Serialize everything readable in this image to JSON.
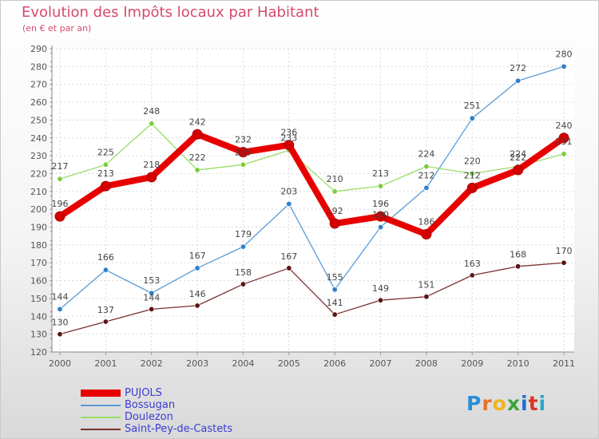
{
  "header": {
    "title": "Evolution des Impôts locaux par Habitant",
    "subtitle": "(en € et par an)"
  },
  "branding": {
    "logo_text": "Proxiti",
    "letter_colors": [
      "#2a8fd8",
      "#e8722a",
      "#f0b41e",
      "#3aa63a",
      "#1c6fd0",
      "#d8362a",
      "#2aa8c8"
    ]
  },
  "chart_data": {
    "type": "line",
    "title": "Evolution des Impôts locaux par Habitant",
    "subtitle": "(en € et par an)",
    "xlabel": "",
    "ylabel": "",
    "ylim": [
      120,
      290
    ],
    "ytick_step": 10,
    "grid": true,
    "x": [
      "2000",
      "2001",
      "2002",
      "2003",
      "2004",
      "2005",
      "2006",
      "2007",
      "2008",
      "2009",
      "2010",
      "2011"
    ],
    "series": [
      {
        "name": "PUJOLS",
        "color": "#e80000",
        "emphasis": true,
        "values": [
          196,
          213,
          218,
          242,
          232,
          236,
          192,
          196,
          186,
          212,
          222,
          240
        ],
        "labels": [
          "196",
          "213",
          "218",
          "242",
          "232",
          "236",
          "192",
          "196",
          "186",
          "212",
          "222",
          "240"
        ]
      },
      {
        "name": "Bossugan",
        "color": "#5b9bd5",
        "marker_color": "#2f7fc9",
        "values": [
          144,
          166,
          153,
          167,
          179,
          203,
          155,
          190,
          212,
          251,
          272,
          280
        ],
        "labels": [
          "144",
          "166",
          "153",
          "167",
          "179",
          "203",
          "155",
          "190",
          "212",
          "251",
          "272",
          "280"
        ]
      },
      {
        "name": "Doulezon",
        "color": "#99dd66",
        "marker_color": "#7ccc3c",
        "values": [
          217,
          225,
          248,
          222,
          225,
          233,
          210,
          213,
          224,
          220,
          224,
          231
        ],
        "labels": [
          "217",
          "225",
          "248",
          "222",
          "225",
          "233",
          "210",
          "213",
          "224",
          "220",
          "224",
          "231"
        ]
      },
      {
        "name": "Saint-Pey-de-Castets",
        "color": "#7a3030",
        "marker_color": "#5e1414",
        "values": [
          130,
          137,
          144,
          146,
          158,
          167,
          141,
          149,
          151,
          163,
          168,
          170
        ],
        "labels": [
          "130",
          "137",
          "144",
          "146",
          "158",
          "167",
          "141",
          "149",
          "151",
          "163",
          "168",
          "170"
        ]
      }
    ],
    "legend": [
      "PUJOLS",
      "Bossugan",
      "Doulezon",
      "Saint-Pey-de-Castets"
    ],
    "legend_position": "bottom-left"
  }
}
